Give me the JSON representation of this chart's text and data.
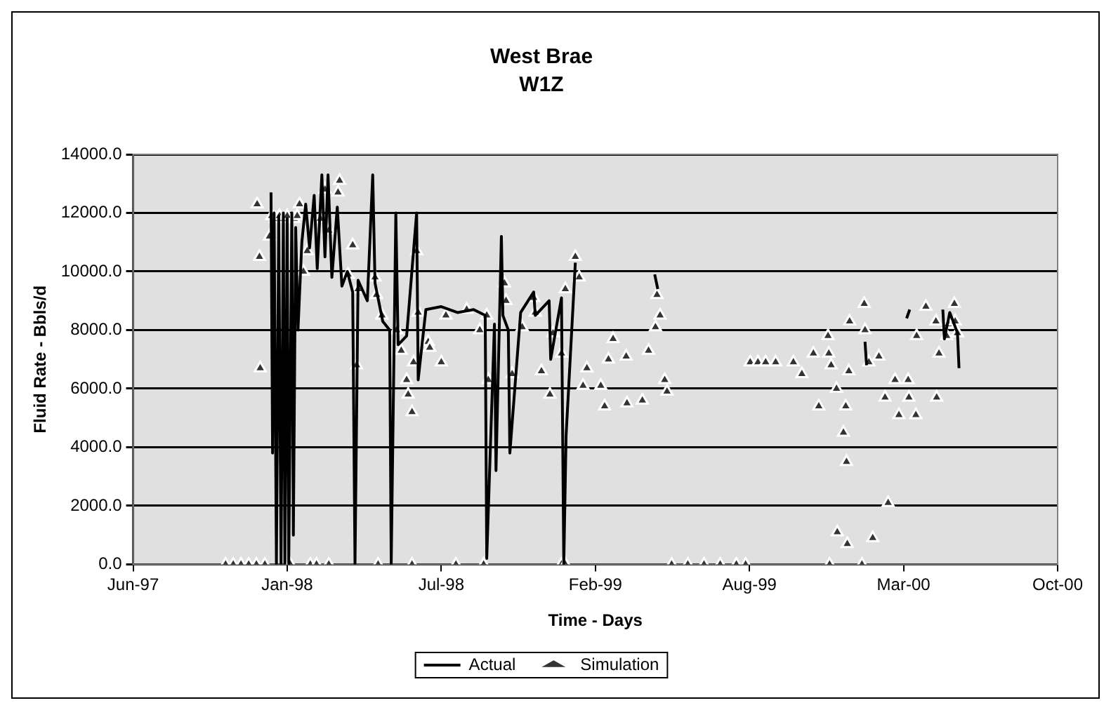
{
  "chart_data": {
    "type": "line",
    "title": "West Brae",
    "subtitle": "W1Z",
    "xlabel": "Time - Days",
    "ylabel": "Fluid Rate - Bbls/d",
    "xlim": [
      "1997-06-20",
      "2000-10-02"
    ],
    "xticks": [
      {
        "value": "1997-06-20",
        "label": "Jun-97"
      },
      {
        "value": "1998-01-06",
        "label": "Jan-98"
      },
      {
        "value": "1998-07-25",
        "label": "Jul-98"
      },
      {
        "value": "1999-02-10",
        "label": "Feb-99"
      },
      {
        "value": "1999-08-29",
        "label": "Aug-99"
      },
      {
        "value": "2000-03-16",
        "label": "Mar-00"
      },
      {
        "value": "2000-10-02",
        "label": "Oct-00"
      }
    ],
    "ylim": [
      0,
      14000
    ],
    "yticks": [
      {
        "value": 0,
        "label": "0.0"
      },
      {
        "value": 2000,
        "label": "2000.0"
      },
      {
        "value": 4000,
        "label": "4000.0"
      },
      {
        "value": 6000,
        "label": "6000.0"
      },
      {
        "value": 8000,
        "label": "8000.0"
      },
      {
        "value": 10000,
        "label": "10000.0"
      },
      {
        "value": 12000,
        "label": "12000.0"
      },
      {
        "value": 14000,
        "label": "14000.0"
      }
    ],
    "grid": "y",
    "legend": "bottom",
    "series": [
      {
        "name": "Actual",
        "color": "#000000",
        "marker": "none",
        "line_style": "solid",
        "x": [
          "1997-12-16",
          "1997-12-18",
          "1997-12-20",
          "1997-12-23",
          "1997-12-26",
          "1997-12-29",
          "1998-01-01",
          "1998-01-03",
          "1998-01-06",
          "1998-01-08",
          "1998-01-12",
          "1998-01-14",
          "1998-01-17",
          "1998-01-20",
          "1998-01-25",
          "1998-01-30",
          "1998-02-04",
          "1998-02-10",
          "1998-02-14",
          "1998-02-20",
          "1998-02-24",
          "1998-02-28",
          "1998-03-05",
          "1998-03-12",
          "1998-03-18",
          "1998-03-25",
          "1998-04-01",
          "1998-04-04",
          "1998-04-08",
          "1998-04-20",
          "1998-04-27",
          "1998-04-30",
          "1998-05-10",
          "1998-05-19",
          "1998-05-21",
          "1998-05-27",
          "1998-05-30",
          "1998-06-10",
          "1998-06-23",
          "1998-06-25",
          "1998-07-05",
          "1998-07-25",
          "1998-08-15",
          "1998-09-05",
          "1998-09-20",
          "1998-09-22",
          "1998-10-02",
          "1998-10-04",
          "1998-10-11",
          "1998-10-13",
          "1998-10-20",
          "1998-10-22",
          "1998-11-05",
          "1998-11-22",
          "1998-11-24",
          "1998-12-12",
          "1998-12-14",
          "1998-12-28",
          "1998-12-31",
          "1999-01-03",
          "1999-01-15",
          "1999-01-20",
          "1999-04-28",
          "1999-05-02",
          "1999-05-04",
          "2000-01-26",
          "2000-01-28",
          "2000-02-01",
          "2000-03-20",
          "2000-03-24",
          "2000-03-28",
          "2000-05-06",
          "2000-05-08",
          "2000-05-15",
          "2000-05-25",
          "2000-05-27"
        ],
        "values": [
          12700,
          3800,
          12000,
          0,
          11900,
          0,
          12000,
          0,
          11800,
          0,
          12000,
          1000,
          11500,
          8000,
          11000,
          12300,
          10800,
          12600,
          10100,
          13300,
          10500,
          13300,
          9800,
          12200,
          9500,
          10000,
          9300,
          0,
          9700,
          9000,
          13300,
          9600,
          8300,
          8000,
          0,
          12000,
          7500,
          7800,
          12000,
          6300,
          8700,
          8800,
          8600,
          8700,
          8500,
          200,
          8200,
          3200,
          11200,
          8500,
          8000,
          3800,
          8600,
          9300,
          8500,
          9000,
          7000,
          9100,
          0,
          4400,
          10300,
          null,
          9900,
          9400,
          null,
          7600,
          6800,
          null,
          8400,
          8700,
          null,
          8700,
          7700,
          8600,
          7900,
          6700
        ]
      },
      {
        "name": "Simulation",
        "type": "scatter",
        "color": "#333333",
        "marker": "triangle",
        "x": [
          "1997-10-18",
          "1997-10-28",
          "1997-11-07",
          "1997-11-17",
          "1997-11-27",
          "1997-11-28",
          "1997-12-01",
          "1997-12-02",
          "1997-12-08",
          "1997-12-14",
          "1997-12-17",
          "1997-12-22",
          "1997-12-27",
          "1998-01-01",
          "1998-01-06",
          "1998-01-10",
          "1998-01-15",
          "1998-01-19",
          "1998-01-22",
          "1998-01-27",
          "1998-02-01",
          "1998-02-05",
          "1998-02-13",
          "1998-02-18",
          "1998-02-24",
          "1998-03-01",
          "1998-03-01",
          "1998-03-13",
          "1998-03-15",
          "1998-03-26",
          "1998-04-01",
          "1998-04-06",
          "1998-04-08",
          "1998-04-30",
          "1998-05-02",
          "1998-05-04",
          "1998-05-09",
          "1998-05-28",
          "1998-06-03",
          "1998-06-10",
          "1998-06-12",
          "1998-06-17",
          "1998-06-17",
          "1998-06-19",
          "1998-06-23",
          "1998-06-25",
          "1998-07-08",
          "1998-07-10",
          "1998-07-25",
          "1998-07-31",
          "1998-08-13",
          "1998-08-27",
          "1998-09-13",
          "1998-09-18",
          "1998-09-22",
          "1998-09-24",
          "1998-10-15",
          "1998-10-17",
          "1998-10-25",
          "1998-11-07",
          "1998-11-22",
          "1998-11-24",
          "1998-12-02",
          "1998-12-13",
          "1998-12-17",
          "1998-12-28",
          "1998-12-28",
          "1999-01-02",
          "1999-01-02",
          "1999-01-15",
          "1999-01-20",
          "1999-01-25",
          "1999-01-30",
          "1999-02-17",
          "1999-02-22",
          "1999-02-27",
          "1999-03-05",
          "1999-03-22",
          "1999-03-23",
          "1999-04-12",
          "1999-04-20",
          "1999-04-29",
          "1999-05-01",
          "1999-05-05",
          "1999-05-11",
          "1999-05-14",
          "1999-05-20",
          "1999-06-10",
          "1999-07-01",
          "1999-07-22",
          "1999-08-12",
          "1999-08-24",
          "1999-08-30",
          "1999-09-09",
          "1999-09-19",
          "1999-10-02",
          "1999-10-25",
          "1999-11-05",
          "1999-11-20",
          "1999-11-27",
          "1999-12-09",
          "1999-12-10",
          "1999-12-11",
          "1999-12-13",
          "1999-12-20",
          "1999-12-21",
          "1999-12-29",
          "2000-01-01",
          "2000-01-02",
          "2000-01-03",
          "2000-01-05",
          "2000-01-06",
          "2000-01-22",
          "2000-01-25",
          "2000-01-26",
          "2000-01-31",
          "2000-02-05",
          "2000-02-13",
          "2000-02-21",
          "2000-02-25",
          "2000-03-05",
          "2000-03-10",
          "2000-03-22",
          "2000-03-23",
          "2000-04-01",
          "2000-04-02",
          "2000-04-14",
          "2000-04-27",
          "2000-04-28",
          "2000-05-01",
          "2000-05-11",
          "2000-05-13",
          "2000-05-21",
          "2000-05-22",
          "2000-05-25"
        ],
        "values": [
          0,
          0,
          0,
          0,
          0,
          12300,
          10500,
          6700,
          0,
          11200,
          11900,
          11800,
          11900,
          11800,
          11900,
          0,
          11800,
          11900,
          12300,
          10000,
          10700,
          0,
          0,
          11800,
          12800,
          11400,
          0,
          12700,
          13100,
          9900,
          10900,
          6800,
          9400,
          9800,
          9200,
          0,
          8500,
          8000,
          7300,
          6300,
          5800,
          5200,
          0,
          6900,
          10700,
          8600,
          7600,
          7400,
          6900,
          8500,
          0,
          8700,
          8000,
          0,
          8500,
          6300,
          9600,
          9000,
          6500,
          8100,
          9100,
          8600,
          6600,
          5800,
          7900,
          7200,
          0,
          9400,
          0,
          10500,
          9800,
          6100,
          6700,
          6100,
          5400,
          7000,
          7700,
          7100,
          5500,
          5600,
          7300,
          8100,
          9200,
          8500,
          6300,
          5900,
          0,
          0,
          0,
          0,
          0,
          0,
          6900,
          6900,
          6900,
          6900,
          6900,
          6500,
          7200,
          5400,
          7800,
          7200,
          0,
          6800,
          6000,
          1100,
          4500,
          5400,
          3500,
          700,
          6600,
          8300,
          0,
          8900,
          8000,
          6900,
          900,
          7100,
          5700,
          2100,
          6300,
          5100,
          6300,
          5700,
          5100,
          7800,
          8800,
          8300,
          5700,
          7200,
          7800,
          8200,
          8900,
          8300,
          7900
        ]
      }
    ]
  }
}
